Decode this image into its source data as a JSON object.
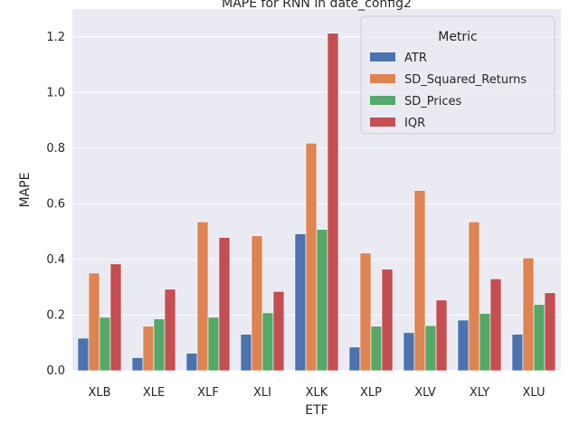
{
  "chart_data": {
    "type": "bar",
    "title": "MAPE for RNN in date_config2",
    "xlabel": "ETF",
    "ylabel": "MAPE",
    "ylim": [
      0,
      1.3
    ],
    "yticks": [
      "0.0",
      "0.2",
      "0.4",
      "0.6",
      "0.8",
      "1.0",
      "1.2"
    ],
    "grid": true,
    "legend_title": "Metric",
    "legend_position": "top-right",
    "categories": [
      "XLB",
      "XLE",
      "XLF",
      "XLI",
      "XLK",
      "XLP",
      "XLV",
      "XLY",
      "XLU"
    ],
    "series": [
      {
        "name": "ATR",
        "color": "#4c72b0",
        "values": [
          0.117,
          0.047,
          0.063,
          0.131,
          0.492,
          0.085,
          0.137,
          0.182,
          0.131
        ]
      },
      {
        "name": "SD_Squared_Returns",
        "color": "#dd8452",
        "values": [
          0.351,
          0.16,
          0.535,
          0.485,
          0.818,
          0.423,
          0.648,
          0.535,
          0.405
        ]
      },
      {
        "name": "SD_Prices",
        "color": "#55a868",
        "values": [
          0.192,
          0.186,
          0.192,
          0.208,
          0.508,
          0.16,
          0.162,
          0.206,
          0.238
        ]
      },
      {
        "name": "IQR",
        "color": "#c44e52",
        "values": [
          0.384,
          0.293,
          0.479,
          0.285,
          1.213,
          0.365,
          0.254,
          0.33,
          0.28
        ]
      }
    ]
  }
}
